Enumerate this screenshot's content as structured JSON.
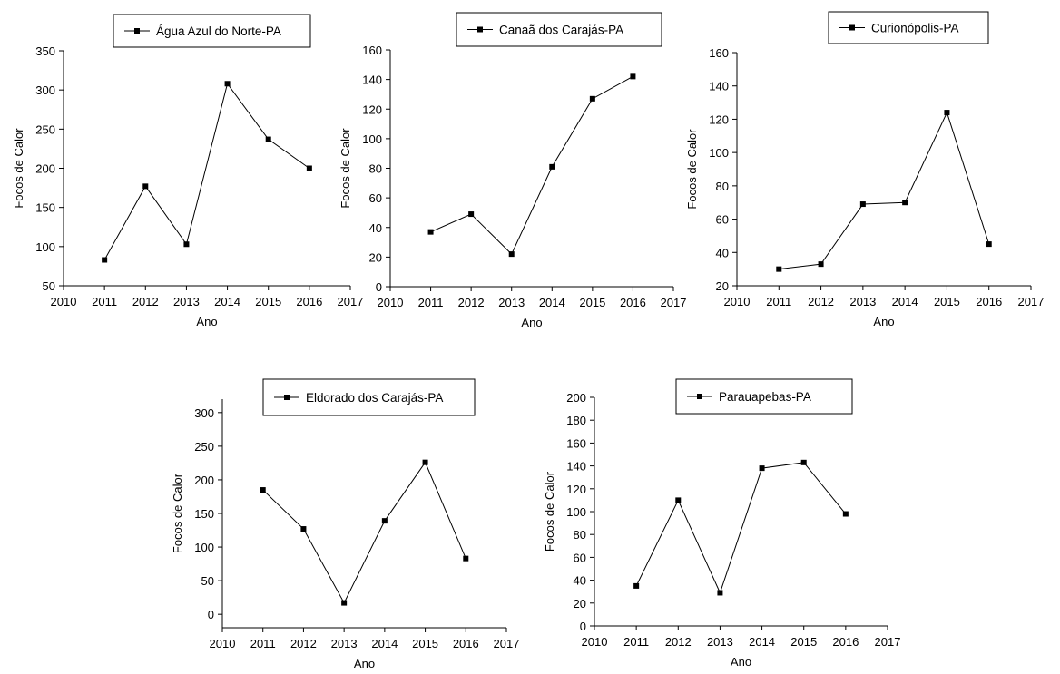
{
  "chart_data": [
    {
      "type": "line",
      "title": "",
      "xlabel": "Ano",
      "ylabel": "Focos de Calor",
      "xlim": [
        2010,
        2017
      ],
      "x_ticks": [
        "2010",
        "2011",
        "2012",
        "2013",
        "2014",
        "2015",
        "2016",
        "2017"
      ],
      "ylim": [
        50,
        350
      ],
      "y_ticks": [
        "50",
        "100",
        "150",
        "200",
        "250",
        "300",
        "350"
      ],
      "grid": false,
      "legend": "top-center",
      "series": [
        {
          "name": "Água Azul do Norte-PA",
          "x": [
            2011,
            2012,
            2013,
            2014,
            2015,
            2016
          ],
          "y": [
            83,
            177,
            103,
            308,
            237,
            200
          ]
        }
      ]
    },
    {
      "type": "line",
      "title": "",
      "xlabel": "Ano",
      "ylabel": "Focos de Calor",
      "xlim": [
        2010,
        2017
      ],
      "x_ticks": [
        "2010",
        "2011",
        "2012",
        "2013",
        "2014",
        "2015",
        "2016",
        "2017"
      ],
      "ylim": [
        0,
        160
      ],
      "y_ticks": [
        "0",
        "20",
        "40",
        "60",
        "80",
        "100",
        "120",
        "140",
        "160"
      ],
      "grid": false,
      "legend": "top-right",
      "series": [
        {
          "name": "Canaã dos Carajás-PA",
          "x": [
            2011,
            2012,
            2013,
            2014,
            2015,
            2016
          ],
          "y": [
            37,
            49,
            22,
            81,
            127,
            142
          ]
        }
      ]
    },
    {
      "type": "line",
      "title": "",
      "xlabel": "Ano",
      "ylabel": "Focos de Calor",
      "xlim": [
        2010,
        2017
      ],
      "x_ticks": [
        "2010",
        "2011",
        "2012",
        "2013",
        "2014",
        "2015",
        "2016",
        "2017"
      ],
      "ylim": [
        20,
        160
      ],
      "y_ticks": [
        "20",
        "40",
        "60",
        "80",
        "100",
        "120",
        "140",
        "160"
      ],
      "grid": false,
      "legend": "top-center",
      "series": [
        {
          "name": "Curionópolis-PA",
          "x": [
            2011,
            2012,
            2013,
            2014,
            2015,
            2016
          ],
          "y": [
            30,
            33,
            69,
            70,
            124,
            45
          ]
        }
      ]
    },
    {
      "type": "line",
      "title": "",
      "xlabel": "Ano",
      "ylabel": "Focos de Calor",
      "xlim": [
        2010,
        2017
      ],
      "x_ticks": [
        "2010",
        "2011",
        "2012",
        "2013",
        "2014",
        "2015",
        "2016",
        "2017"
      ],
      "ylim": [
        -20,
        320
      ],
      "y_ticks": [
        "0",
        "50",
        "100",
        "150",
        "200",
        "250",
        "300"
      ],
      "grid": false,
      "legend": "top-center",
      "series": [
        {
          "name": "Eldorado dos Carajás-PA",
          "x": [
            2011,
            2012,
            2013,
            2014,
            2015,
            2016
          ],
          "y": [
            185,
            127,
            17,
            139,
            226,
            83
          ]
        }
      ]
    },
    {
      "type": "line",
      "title": "",
      "xlabel": "Ano",
      "ylabel": "Focos de Calor",
      "xlim": [
        2010,
        2017
      ],
      "x_ticks": [
        "2010",
        "2011",
        "2012",
        "2013",
        "2014",
        "2015",
        "2016",
        "2017"
      ],
      "ylim": [
        0,
        200
      ],
      "y_ticks": [
        "0",
        "20",
        "40",
        "60",
        "80",
        "100",
        "120",
        "140",
        "160",
        "180",
        "200"
      ],
      "grid": false,
      "legend": "top-center",
      "series": [
        {
          "name": "Parauapebas-PA",
          "x": [
            2011,
            2012,
            2013,
            2014,
            2015,
            2016
          ],
          "y": [
            35,
            110,
            29,
            138,
            143,
            98
          ]
        }
      ]
    }
  ]
}
